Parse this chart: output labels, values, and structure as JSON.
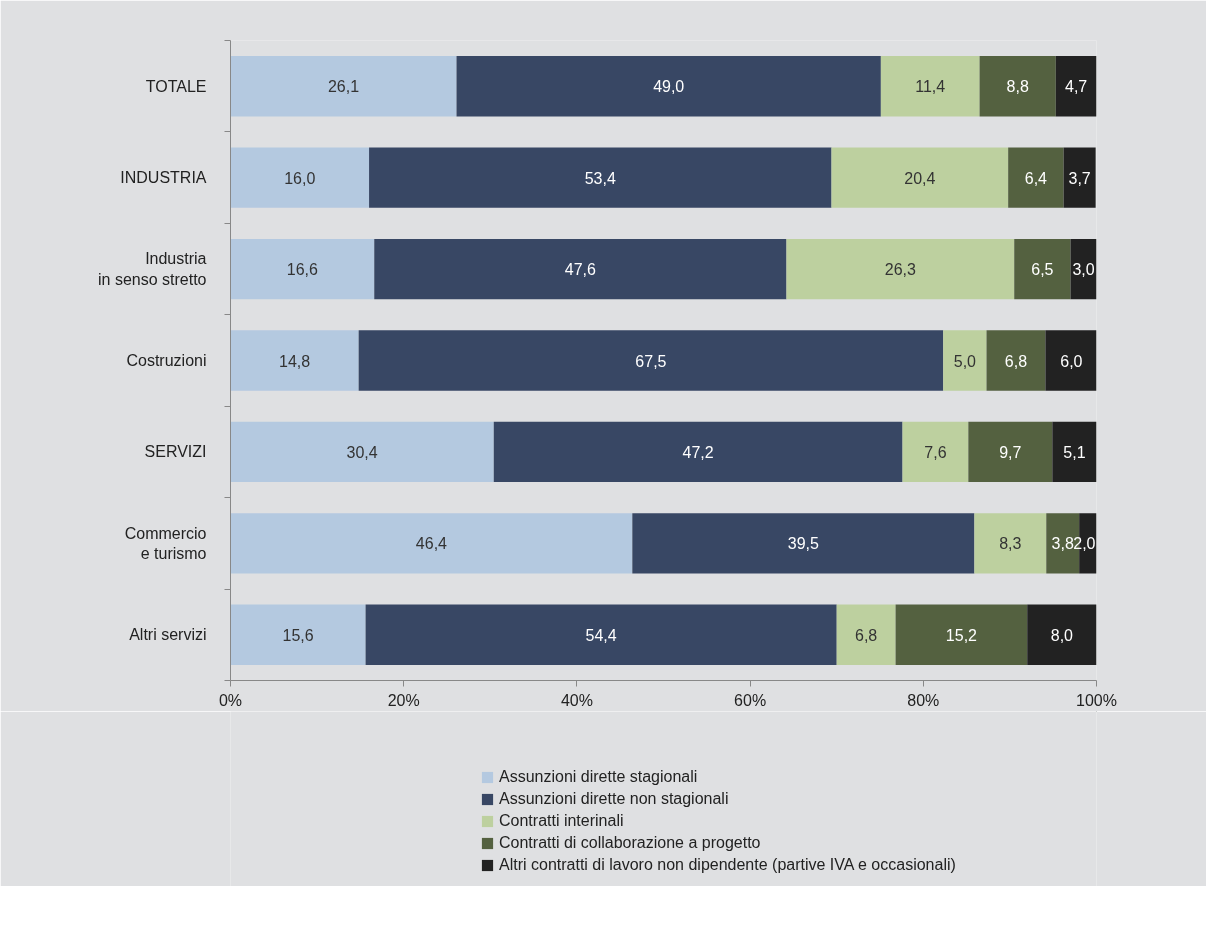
{
  "chart_data": {
    "type": "bar",
    "orientation": "horizontal",
    "stacked": true,
    "categories": [
      "TOTALE",
      "INDUSTRIA",
      "Industria\nin senso stretto",
      "Costruzioni",
      "SERVIZI",
      "Commercio\ne turismo",
      "Altri servizi"
    ],
    "series": [
      {
        "name": "Assunzioni dirette stagionali",
        "color": "#b4c9e0",
        "values": [
          26.1,
          16.0,
          16.6,
          14.8,
          30.4,
          46.4,
          15.6
        ],
        "value_labels": [
          "26,1",
          "16,0",
          "16,6",
          "14,8",
          "30,4",
          "46,4",
          "15,6"
        ]
      },
      {
        "name": "Assunzioni dirette non stagionali",
        "color": "#384764",
        "values": [
          49.0,
          53.4,
          47.6,
          67.5,
          47.2,
          39.5,
          54.4
        ],
        "value_labels": [
          "49,0",
          "53,4",
          "47,6",
          "67,5",
          "47,2",
          "39,5",
          "54,4"
        ]
      },
      {
        "name": "Contratti interinali",
        "color": "#bdd09f",
        "values": [
          11.4,
          20.4,
          26.3,
          5.0,
          7.6,
          8.3,
          6.8
        ],
        "value_labels": [
          "11,4",
          "20,4",
          "26,3",
          "5,0",
          "7,6",
          "8,3",
          "6,8"
        ]
      },
      {
        "name": "Contratti di collaborazione a progetto",
        "color": "#546140",
        "values": [
          8.8,
          6.4,
          6.5,
          6.8,
          9.7,
          3.8,
          15.2
        ],
        "value_labels": [
          "8,8",
          "6,4",
          "6,5",
          "6,8",
          "9,7",
          "3,8",
          "15,2"
        ]
      },
      {
        "name": "Altri contratti di lavoro non dipendente (partive IVA e occasionali)",
        "color": "#222222",
        "values": [
          4.7,
          3.7,
          3.0,
          6.0,
          5.1,
          2.0,
          8.0
        ],
        "value_labels": [
          "4,7",
          "3,7",
          "3,0",
          "6,0",
          "5,1",
          "2,0",
          "8,0"
        ]
      }
    ],
    "xlim": [
      0,
      100
    ],
    "xticks": [
      {
        "value": 0,
        "label": "0%"
      },
      {
        "value": 20,
        "label": "20%"
      },
      {
        "value": 40,
        "label": "40%"
      },
      {
        "value": 60,
        "label": "60%"
      },
      {
        "value": 80,
        "label": "80%"
      },
      {
        "value": 100,
        "label": "100%"
      }
    ],
    "grid": false,
    "legend": "bottom"
  }
}
